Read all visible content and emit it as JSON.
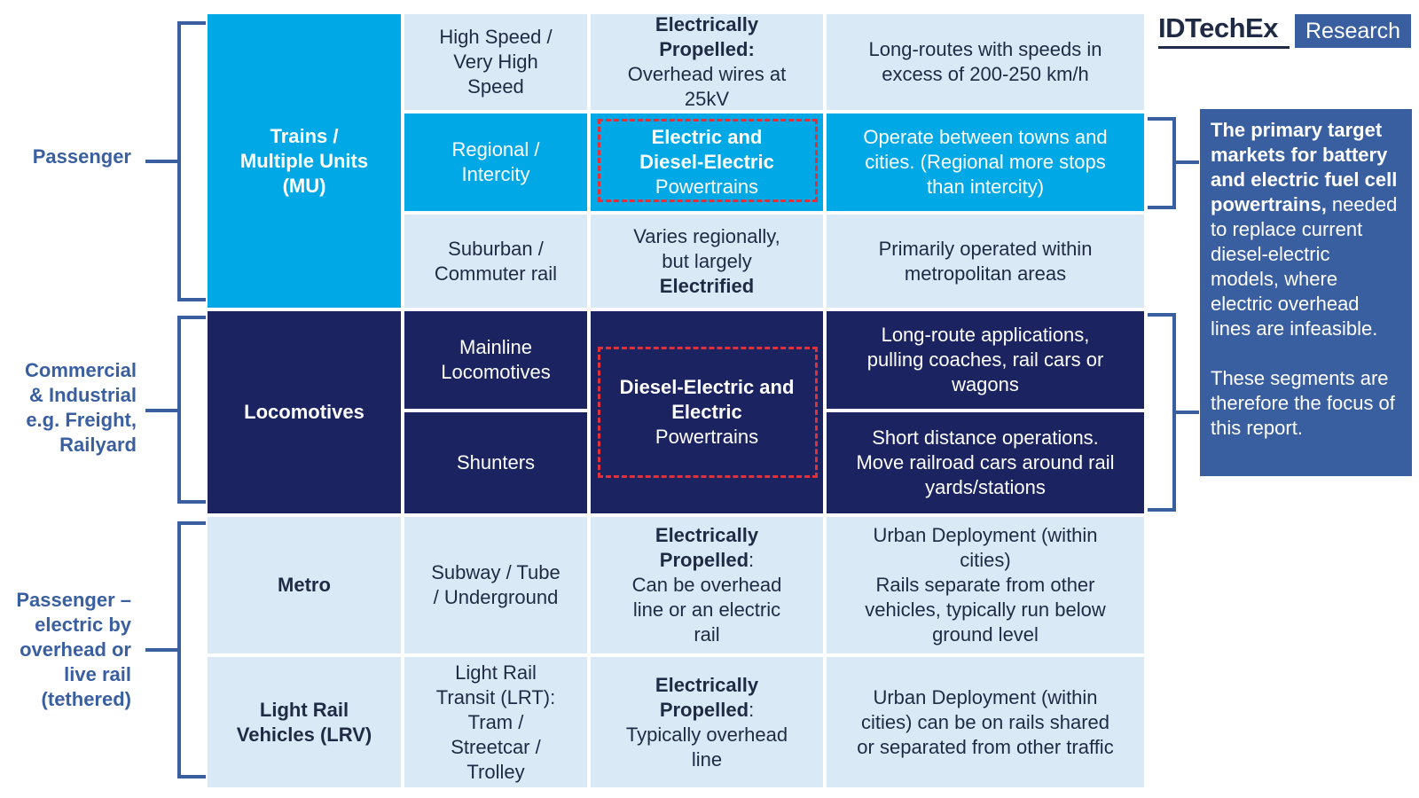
{
  "brand": {
    "name": "IDTechEx",
    "tag": "Research"
  },
  "segments": [
    {
      "label": "Passenger"
    },
    {
      "label": "Commercial\n& Industrial\ne.g. Freight,\nRailyard"
    },
    {
      "label": "Passenger –\nelectric by\noverhead or\nlive rail\n(tethered)"
    }
  ],
  "categories": {
    "mu": "Trains /\nMultiple Units\n(MU)",
    "loco": "Locomotives",
    "metro": "Metro",
    "lrv": "Light Rail\nVehicles (LRV)"
  },
  "subtypes": {
    "hs": "High Speed /\nVery High\nSpeed",
    "regional": "Regional /\nIntercity",
    "suburban": "Suburban /\nCommuter rail",
    "mainline": "Mainline\nLocomotives",
    "shunters": "Shunters",
    "subway": "Subway / Tube\n/ Underground",
    "lrt": "Light Rail\nTransit (LRT):\nTram /\nStreetcar /\nTrolley"
  },
  "powertrains": {
    "hs_bold": "Electrically\nPropelled:",
    "hs_rest": "\nOverhead wires at\n25kV",
    "regional_bold": "Electric and\nDiesel-Electric",
    "regional_rest": "\nPowertrains",
    "suburban_pre": "Varies regionally,\nbut largely\n",
    "suburban_bold": "Electrified",
    "loco_bold": "Diesel-Electric and\nElectric",
    "loco_rest": "\nPowertrains",
    "metro_bold": "Electrically\nPropelled",
    "metro_rest": ":\nCan be overhead\nline or an electric\nrail",
    "lrv_bold": "Electrically\nPropelled",
    "lrv_rest": ":\nTypically overhead\nline"
  },
  "descriptions": {
    "hs": "Long-routes with speeds in\nexcess of 200-250 km/h",
    "regional": "Operate between towns and\ncities. (Regional more stops\nthan intercity)",
    "suburban": "Primarily operated within\nmetropolitan areas",
    "mainline": "Long-route applications,\npulling coaches, rail cars or\nwagons",
    "shunters": "Short distance operations.\nMove railroad cars around rail\nyards/stations",
    "metro": "Urban Deployment (within\ncities)\nRails separate from other\nvehicles, typically run below\nground level",
    "lrv": "Urban Deployment (within\ncities) can be on rails shared\nor separated from other traffic"
  },
  "note": {
    "bold": "The primary target markets for battery and electric fuel cell powertrains,",
    "rest": " needed to replace current diesel-electric models, where electric overhead lines are infeasible.",
    "second": "These segments are therefore the focus of this report."
  }
}
